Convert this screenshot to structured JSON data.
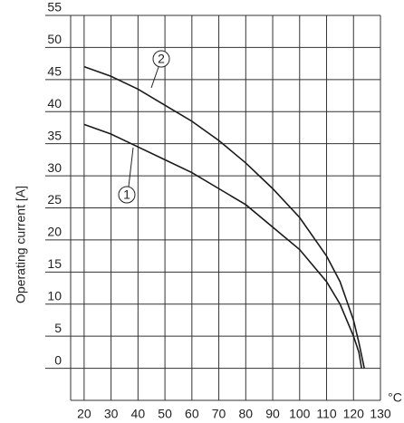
{
  "chart_data": {
    "type": "line",
    "y_label": "Operating current [A]",
    "x_unit": "°C",
    "xlim": [
      15,
      130
    ],
    "xticks": [
      20,
      30,
      40,
      50,
      60,
      70,
      80,
      90,
      100,
      110,
      120,
      130
    ],
    "ylim": [
      -5,
      55
    ],
    "yticks": [
      0,
      5,
      10,
      15,
      20,
      25,
      30,
      35,
      40,
      45,
      50,
      55
    ],
    "grid": true,
    "series": [
      {
        "name": "1",
        "color": "#1a1a1a",
        "x": [
          20,
          30,
          40,
          50,
          60,
          70,
          80,
          90,
          100,
          110,
          115,
          120,
          122,
          123
        ],
        "values": [
          38,
          36.5,
          34.5,
          32.5,
          30.5,
          28,
          25.5,
          22,
          18.5,
          13.5,
          10,
          5,
          2.5,
          0
        ]
      },
      {
        "name": "2",
        "color": "#1a1a1a",
        "x": [
          20,
          30,
          40,
          50,
          60,
          70,
          80,
          90,
          100,
          110,
          115,
          120,
          122,
          124
        ],
        "values": [
          47,
          45.5,
          43.5,
          41,
          38.5,
          35.5,
          32,
          28,
          23.5,
          17.5,
          13.5,
          7.5,
          4,
          0
        ]
      }
    ]
  }
}
